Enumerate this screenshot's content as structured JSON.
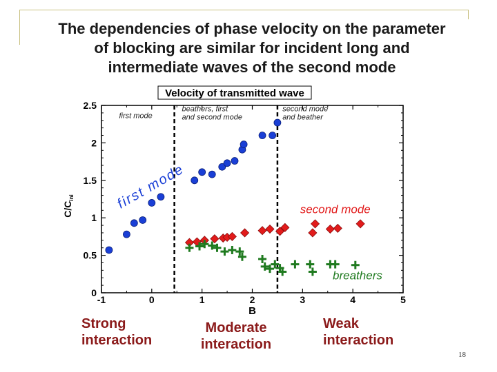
{
  "slide": {
    "title_lines": [
      "The dependencies of phase velocity on the parameter",
      "of blocking are similar for incident long and",
      "intermediate waves of the second mode"
    ],
    "page_number": "18",
    "captions": [
      "Strong interaction",
      "Moderate interaction",
      "Weak interaction"
    ]
  },
  "chart_data": {
    "type": "scatter",
    "title": "Velocity of transmitted wave",
    "xlabel": "B",
    "ylabel": "C/C",
    "ylabel_sub": "ini",
    "xlim": [
      -1,
      5
    ],
    "ylim": [
      0,
      2.5
    ],
    "x_ticks": [
      -1,
      0,
      1,
      2,
      3,
      4,
      5
    ],
    "x_tick_labels": [
      "-1",
      "0",
      "1",
      "2",
      "3",
      "4",
      "5"
    ],
    "y_ticks": [
      0,
      0.5,
      1,
      1.5,
      2,
      2.5
    ],
    "y_tick_labels": [
      "0",
      "0.5",
      "1",
      "1.5",
      "2",
      "2.5"
    ],
    "dividers": [
      0.45,
      2.5
    ],
    "region_labels": [
      {
        "lines": [
          "first mode"
        ],
        "x": -0.65,
        "y": 2.33
      },
      {
        "lines": [
          "beathers, first",
          "and second mode"
        ],
        "x": 0.6,
        "y": 2.42
      },
      {
        "lines": [
          "second mode",
          "and beather"
        ],
        "x": 2.6,
        "y": 2.42
      }
    ],
    "series": [
      {
        "name": "first mode",
        "marker": "circle",
        "color": "#1a3fd6",
        "label_text": "first mode",
        "x": [
          -0.85,
          -0.5,
          -0.35,
          -0.18,
          0.0,
          0.18,
          0.85,
          1.0,
          1.2,
          1.4,
          1.5,
          1.65,
          1.8,
          1.83,
          2.2,
          2.4,
          2.5
        ],
        "y": [
          0.57,
          0.78,
          0.93,
          0.97,
          1.2,
          1.28,
          1.5,
          1.61,
          1.58,
          1.68,
          1.73,
          1.76,
          1.91,
          1.98,
          2.1,
          2.1,
          2.27
        ]
      },
      {
        "name": "second mode",
        "marker": "diamond",
        "color": "#e21b1b",
        "label_text": "second mode",
        "x": [
          0.75,
          0.9,
          1.05,
          1.25,
          1.42,
          1.5,
          1.6,
          1.85,
          2.2,
          2.35,
          2.55,
          2.65,
          3.2,
          3.25,
          3.55,
          3.7,
          4.15
        ],
        "y": [
          0.67,
          0.68,
          0.7,
          0.72,
          0.73,
          0.74,
          0.75,
          0.8,
          0.83,
          0.85,
          0.82,
          0.87,
          0.8,
          0.92,
          0.85,
          0.86,
          0.92
        ]
      },
      {
        "name": "breathers",
        "marker": "cross",
        "color": "#1f7a1f",
        "label_text": "breathers",
        "x": [
          0.75,
          0.95,
          1.05,
          1.2,
          1.3,
          1.45,
          1.6,
          1.75,
          1.8,
          2.2,
          2.25,
          2.35,
          2.45,
          2.55,
          2.6,
          2.85,
          3.15,
          3.2,
          3.55,
          3.65,
          4.05
        ],
        "y": [
          0.6,
          0.62,
          0.65,
          0.63,
          0.6,
          0.55,
          0.57,
          0.55,
          0.48,
          0.45,
          0.35,
          0.32,
          0.38,
          0.33,
          0.28,
          0.38,
          0.38,
          0.28,
          0.38,
          0.38,
          0.37
        ]
      }
    ]
  }
}
